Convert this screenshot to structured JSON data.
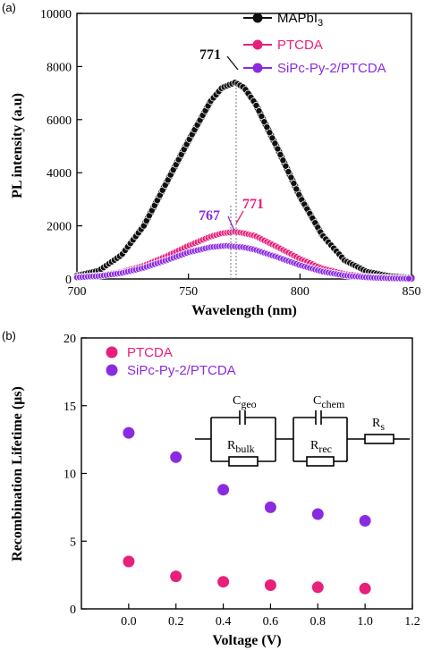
{
  "colors": {
    "black": "#111111",
    "pink": "#e8207a",
    "purple": "#8a2be2"
  },
  "chart_data": [
    {
      "type": "line",
      "panel_label": "(a)",
      "xlabel": "Wavelength (nm)",
      "ylabel": "PL intensity (a.u)",
      "xlim": [
        700,
        850
      ],
      "ylim": [
        0,
        10000
      ],
      "xticks": [
        "700",
        "750",
        "800",
        "850"
      ],
      "yticks": [
        "0",
        "2000",
        "4000",
        "6000",
        "8000",
        "10000"
      ],
      "legend_position": "top-right",
      "series": [
        {
          "name": "MAPbI3",
          "color": "#111111",
          "peak": 771,
          "peak_label": "771",
          "x": [
            700,
            710,
            720,
            730,
            740,
            750,
            760,
            765,
            771,
            775,
            780,
            790,
            800,
            810,
            820,
            830,
            840,
            850
          ],
          "y": [
            130,
            320,
            900,
            2000,
            3600,
            5200,
            6700,
            7200,
            7400,
            7200,
            6600,
            4900,
            3100,
            1650,
            700,
            280,
            110,
            50
          ]
        },
        {
          "name": "PTCDA",
          "color": "#e8207a",
          "peak": 771,
          "peak_label": "771",
          "x": [
            700,
            710,
            720,
            730,
            740,
            750,
            760,
            765,
            771,
            775,
            780,
            790,
            800,
            810,
            820,
            830,
            840,
            850
          ],
          "y": [
            70,
            130,
            260,
            500,
            850,
            1250,
            1600,
            1720,
            1780,
            1720,
            1620,
            1200,
            760,
            400,
            190,
            90,
            40,
            20
          ]
        },
        {
          "name": "SiPc-Py-2/PTCDA",
          "color": "#8a2be2",
          "peak": 767,
          "peak_label": "767",
          "x": [
            700,
            710,
            720,
            730,
            740,
            750,
            760,
            767,
            775,
            780,
            790,
            800,
            810,
            820,
            830,
            840,
            850
          ],
          "y": [
            60,
            110,
            220,
            420,
            700,
            1000,
            1200,
            1250,
            1190,
            1100,
            820,
            520,
            280,
            130,
            60,
            25,
            10
          ]
        }
      ]
    },
    {
      "type": "scatter",
      "panel_label": "(b)",
      "xlabel": "Voltage (V)",
      "ylabel": "Recombination Lifetime (μs)",
      "xlim": [
        -0.2,
        1.2
      ],
      "ylim": [
        0,
        20
      ],
      "xticks": [
        "0.0",
        "0.2",
        "0.4",
        "0.6",
        "0.8",
        "1.0",
        "1.2"
      ],
      "yticks": [
        "0",
        "5",
        "10",
        "15",
        "20"
      ],
      "legend_position": "top-left",
      "series": [
        {
          "name": "PTCDA",
          "color": "#e8207a",
          "x": [
            0.0,
            0.2,
            0.4,
            0.6,
            0.8,
            1.0
          ],
          "y": [
            3.5,
            2.4,
            2.0,
            1.75,
            1.6,
            1.5
          ]
        },
        {
          "name": "SiPc-Py-2/PTCDA",
          "color": "#8a2be2",
          "x": [
            0.0,
            0.2,
            0.4,
            0.6,
            0.8,
            1.0
          ],
          "y": [
            13.0,
            11.2,
            8.8,
            7.5,
            7.0,
            6.5
          ]
        }
      ],
      "circuit": {
        "c1": "C",
        "c1_sub": "geo",
        "r1": "R",
        "r1_sub": "bulk",
        "c2": "C",
        "c2_sub": "chem",
        "r2": "R",
        "r2_sub": "rec",
        "r3": "R",
        "r3_sub": "s"
      }
    }
  ]
}
